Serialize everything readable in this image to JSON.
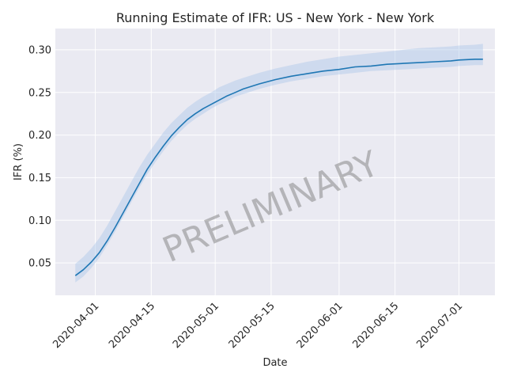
{
  "chart_data": {
    "type": "line",
    "title": "Running Estimate of IFR: US - New York - New York",
    "xlabel": "Date",
    "ylabel": "IFR (%)",
    "watermark": "PRELIMINARY",
    "grid": true,
    "line_color": "#1f77b4",
    "band_color": "#aec7e8",
    "plot_background": "#eaeaf2",
    "xlim": [
      "2020-03-22",
      "2020-07-10"
    ],
    "ylim": [
      0.012,
      0.325
    ],
    "x_ticks": [
      "2020-04-01",
      "2020-04-15",
      "2020-05-01",
      "2020-05-15",
      "2020-06-01",
      "2020-06-15",
      "2020-07-01"
    ],
    "y_ticks": [
      0.05,
      0.1,
      0.15,
      0.2,
      0.25,
      0.3
    ],
    "y_tick_labels": [
      "0.05",
      "0.10",
      "0.15",
      "0.20",
      "0.25",
      "0.30"
    ],
    "series": [
      {
        "x": [
          "2020-03-27",
          "2020-03-29",
          "2020-03-31",
          "2020-04-02",
          "2020-04-04",
          "2020-04-06",
          "2020-04-08",
          "2020-04-10",
          "2020-04-12",
          "2020-04-14",
          "2020-04-16",
          "2020-04-18",
          "2020-04-20",
          "2020-04-22",
          "2020-04-24",
          "2020-04-26",
          "2020-04-28",
          "2020-04-30",
          "2020-05-02",
          "2020-05-04",
          "2020-05-06",
          "2020-05-08",
          "2020-05-12",
          "2020-05-16",
          "2020-05-20",
          "2020-05-24",
          "2020-05-28",
          "2020-06-01",
          "2020-06-05",
          "2020-06-09",
          "2020-06-13",
          "2020-06-17",
          "2020-06-21",
          "2020-06-25",
          "2020-06-29",
          "2020-07-01",
          "2020-07-05",
          "2020-07-07"
        ],
        "y": [
          0.035,
          0.042,
          0.051,
          0.062,
          0.076,
          0.092,
          0.109,
          0.126,
          0.143,
          0.16,
          0.174,
          0.187,
          0.199,
          0.209,
          0.218,
          0.225,
          0.231,
          0.236,
          0.241,
          0.246,
          0.25,
          0.254,
          0.26,
          0.265,
          0.269,
          0.272,
          0.275,
          0.277,
          0.28,
          0.281,
          0.283,
          0.284,
          0.285,
          0.286,
          0.287,
          0.288,
          0.289,
          0.289
        ],
        "lower": [
          0.027,
          0.034,
          0.044,
          0.056,
          0.071,
          0.087,
          0.104,
          0.121,
          0.138,
          0.154,
          0.168,
          0.181,
          0.193,
          0.203,
          0.212,
          0.219,
          0.225,
          0.231,
          0.236,
          0.24,
          0.245,
          0.248,
          0.254,
          0.259,
          0.263,
          0.266,
          0.269,
          0.271,
          0.273,
          0.275,
          0.276,
          0.277,
          0.278,
          0.279,
          0.28,
          0.281,
          0.282,
          0.282
        ],
        "upper": [
          0.049,
          0.057,
          0.067,
          0.079,
          0.094,
          0.111,
          0.128,
          0.145,
          0.162,
          0.177,
          0.19,
          0.203,
          0.214,
          0.223,
          0.232,
          0.239,
          0.245,
          0.25,
          0.256,
          0.26,
          0.264,
          0.267,
          0.273,
          0.278,
          0.282,
          0.286,
          0.289,
          0.292,
          0.294,
          0.296,
          0.298,
          0.3,
          0.302,
          0.303,
          0.304,
          0.305,
          0.306,
          0.307
        ]
      }
    ]
  }
}
